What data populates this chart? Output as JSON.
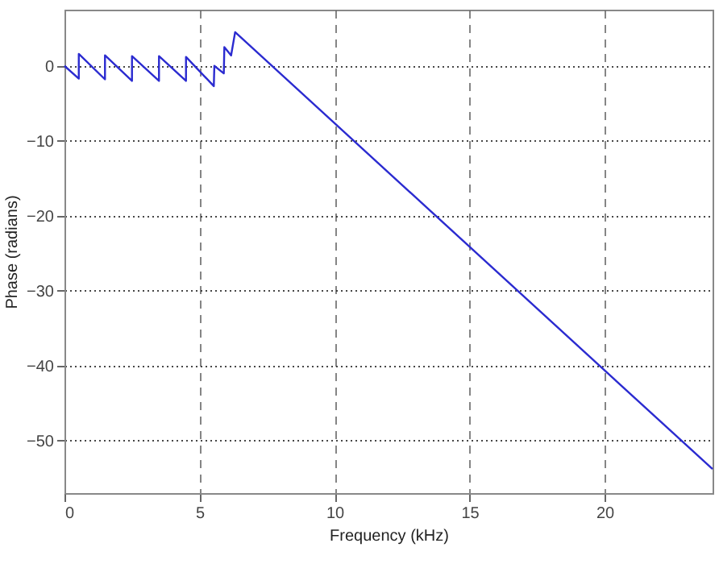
{
  "chart_data": {
    "type": "line",
    "xlabel": "Frequency (kHz)",
    "ylabel": "Phase (radians)",
    "x": [
      0,
      0.53,
      0.53,
      1.5,
      1.5,
      2.5,
      2.5,
      3.5,
      3.5,
      4.5,
      4.5,
      5.53,
      5.55,
      5.9,
      5.92,
      6.17,
      6.32,
      24
    ],
    "series": [
      {
        "color": "#2b2bd0",
        "values": [
          0,
          -1.7,
          1.6,
          -1.8,
          1.4,
          -2.0,
          1.3,
          -2.0,
          1.3,
          -2.0,
          1.2,
          -2.7,
          0,
          -1.0,
          2.5,
          1.4,
          4.5,
          -53.8
        ]
      }
    ],
    "xlim": [
      0,
      24
    ],
    "xticks": [
      0,
      5,
      10,
      15,
      20
    ],
    "ylim": [
      -57,
      7.5
    ],
    "yticks": [
      -50,
      -40,
      -30,
      -20,
      -10,
      0
    ],
    "grid": true
  }
}
